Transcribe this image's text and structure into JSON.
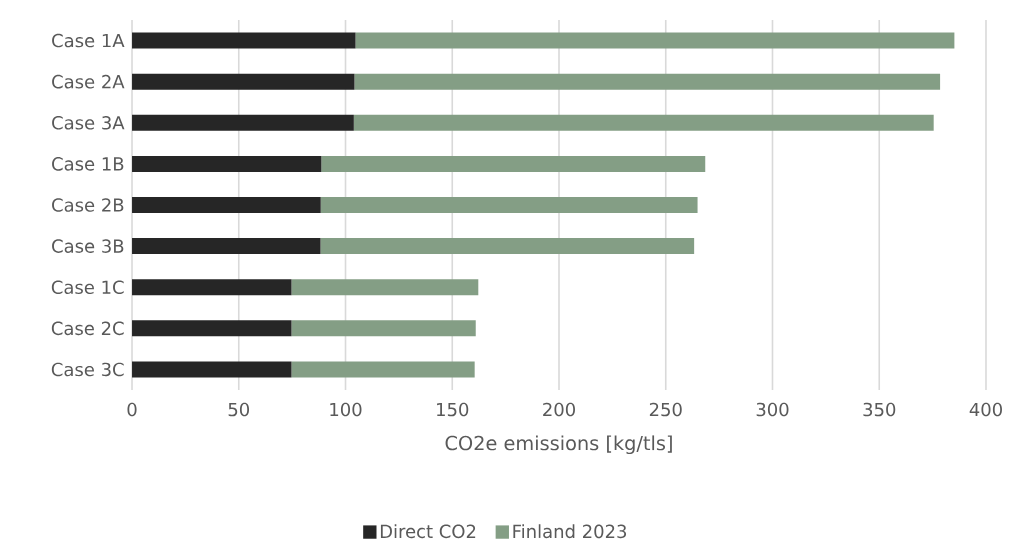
{
  "chart_data": {
    "type": "bar",
    "orientation": "horizontal",
    "stacked": true,
    "categories": [
      "Case 1A",
      "Case 2A",
      "Case 3A",
      "Case 1B",
      "Case 2B",
      "Case 3B",
      "Case 1C",
      "Case 2C",
      "Case 3C"
    ],
    "series": [
      {
        "name": "Direct CO2",
        "color": "#262626",
        "values": [
          104.7,
          104.2,
          103.9,
          88.7,
          88.4,
          88.3,
          74.7,
          74.7,
          74.7
        ]
      },
      {
        "name": "Finland 2023",
        "color": "#849e85",
        "values": [
          280.5,
          274.3,
          271.6,
          179.8,
          176.5,
          175.0,
          87.5,
          86.3,
          85.8
        ]
      }
    ],
    "xlabel": "CO2e emissions [kg/tls]",
    "xlim": [
      0,
      400
    ],
    "xticks": [
      0,
      50,
      100,
      150,
      200,
      250,
      300,
      350,
      400
    ],
    "grid": "x",
    "legend": "bottom"
  }
}
